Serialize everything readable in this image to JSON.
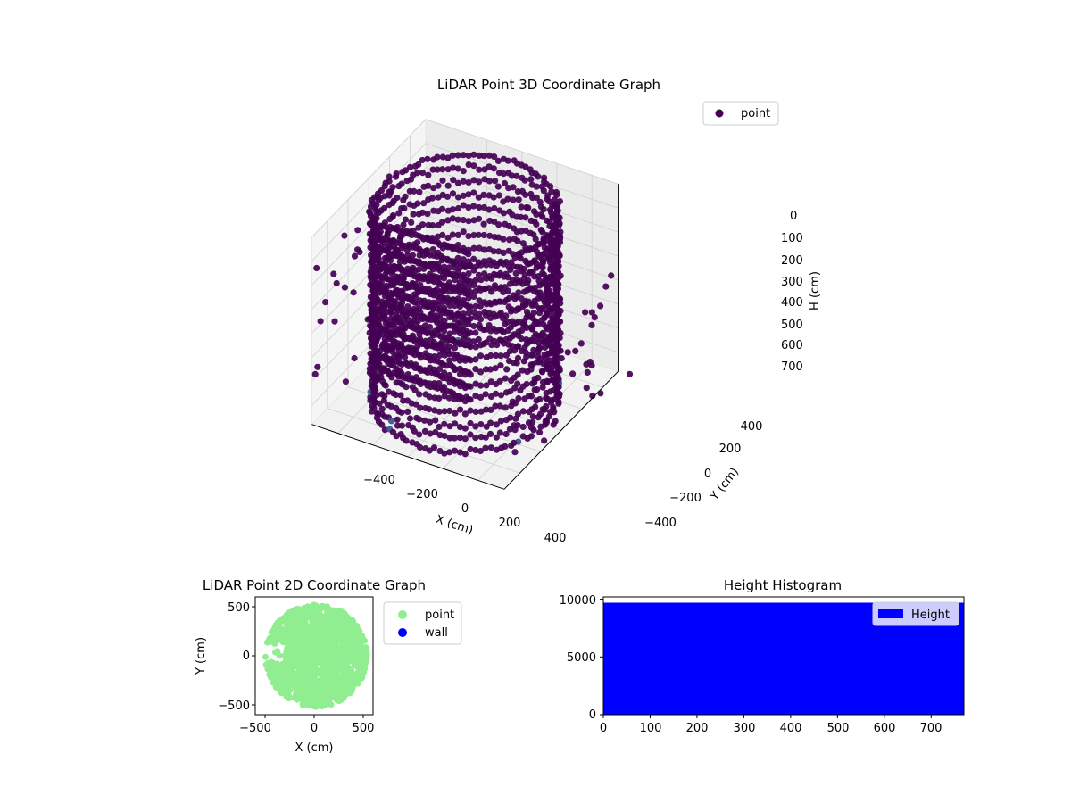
{
  "chart_data": [
    {
      "id": "lidar-3d",
      "type": "scatter",
      "title": "LiDAR Point 3D Coordinate Graph",
      "xlabel": "X (cm)",
      "ylabel": "Y (cm)",
      "zlabel": "H (cm)",
      "xlim": [
        -550,
        550
      ],
      "ylim": [
        -550,
        550
      ],
      "zlim": [
        780,
        0
      ],
      "x_ticks": [
        "−400",
        "−200",
        "0",
        "200",
        "400"
      ],
      "y_ticks": [
        "−400",
        "−200",
        "0",
        "200",
        "400"
      ],
      "z_ticks": [
        "0",
        "100",
        "200",
        "300",
        "400",
        "500",
        "600",
        "700"
      ],
      "legend": {
        "labels": [
          "point"
        ],
        "placement": "top-right"
      },
      "colors": {
        "point": "#440154",
        "point_light": "#3b528b"
      },
      "grid": true,
      "shape": "ring of wall points, radius ~500 cm, heights 0–780 cm, with an inner partition wall from the centre to the west side"
    },
    {
      "id": "lidar-2d",
      "type": "scatter",
      "title": "LiDAR Point 2D Coordinate Graph",
      "xlabel": "X (cm)",
      "ylabel": "Y (cm)",
      "xlim": [
        -600,
        600
      ],
      "ylim": [
        -600,
        600
      ],
      "x_ticks": [
        "−500",
        "0",
        "500"
      ],
      "y_ticks": [
        "−500",
        "0",
        "500"
      ],
      "legend": {
        "labels": [
          "point",
          "wall"
        ],
        "placement": "outside-right"
      },
      "colors": {
        "point": "#90ee90",
        "wall": "#0000ff"
      }
    },
    {
      "id": "height-hist",
      "type": "bar",
      "title": "Height Histogram",
      "xlim": [
        0,
        770
      ],
      "ylim": [
        0,
        10200
      ],
      "bar_value": 9700,
      "x_ticks": [
        "0",
        "100",
        "200",
        "300",
        "400",
        "500",
        "600",
        "700"
      ],
      "y_ticks": [
        "0",
        "5000",
        "10000"
      ],
      "legend": {
        "labels": [
          "Height"
        ],
        "placement": "top-right"
      },
      "colors": {
        "bar": "#0000ff"
      }
    }
  ]
}
